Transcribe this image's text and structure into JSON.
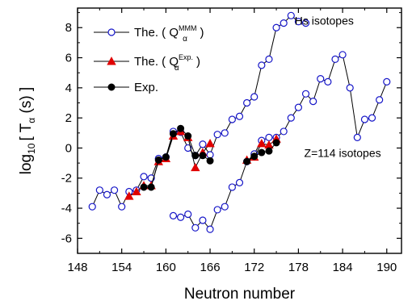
{
  "chart_data": {
    "type": "scatter",
    "xlabel": "Neutron number",
    "ylabel": {
      "prefix": "log",
      "sub": "10",
      "bracket_open": "[ T",
      "alpha": "α",
      "unit": " (s) ]"
    },
    "xlim": [
      148,
      192
    ],
    "ylim": [
      -7,
      9.3
    ],
    "xticks": [
      148,
      154,
      160,
      166,
      172,
      178,
      184,
      190
    ],
    "yticks": [
      -6,
      -4,
      -2,
      0,
      2,
      4,
      6,
      8
    ],
    "annotations": [
      {
        "text": "Hs isotopes",
        "x": 181.5,
        "y": 8.2
      },
      {
        "text": "Z=114 isotopes",
        "x": 184,
        "y": -0.6
      }
    ],
    "legend": {
      "placement": "top-left",
      "entries": [
        {
          "series": "the_mmm",
          "prefix": "The.  ( Q",
          "sub": "α",
          "sup": "MMM",
          "suffix": " )"
        },
        {
          "series": "the_exp",
          "prefix": "The.  ( Q",
          "sub": "α",
          "sup": "Exp.",
          "suffix": " )"
        },
        {
          "series": "exp",
          "prefix": "Exp.",
          "sub": "",
          "sup": "",
          "suffix": ""
        }
      ]
    },
    "series": [
      {
        "id": "the_mmm",
        "marker": "open-circle",
        "color": "#1515c8",
        "line_color": "#000000",
        "segments": [
          {
            "x": [
              150,
              151,
              152,
              153,
              154,
              155,
              156,
              157,
              158,
              159,
              160,
              161,
              162,
              163,
              164,
              165,
              166,
              167,
              168,
              169,
              170,
              171,
              172,
              173,
              174,
              175,
              176,
              177,
              178,
              179
            ],
            "y": [
              -3.9,
              -2.8,
              -3.1,
              -2.8,
              -3.9,
              -2.9,
              -2.8,
              -1.9,
              -2.0,
              -0.7,
              -0.6,
              1.1,
              1.05,
              0.0,
              -0.5,
              0.25,
              -0.45,
              0.9,
              1.0,
              1.9,
              2.1,
              3.0,
              3.4,
              5.5,
              5.9,
              8.0,
              8.3,
              8.8,
              8.4,
              8.3
            ]
          },
          {
            "x": [
              161,
              162,
              163,
              164,
              165,
              166,
              167,
              168,
              169,
              170,
              171,
              172,
              173,
              174,
              175,
              176,
              177,
              178,
              179,
              180,
              181,
              182,
              183,
              184,
              185,
              186,
              187,
              188,
              189,
              190
            ],
            "y": [
              -4.5,
              -4.6,
              -4.4,
              -5.3,
              -4.8,
              -5.4,
              -4.1,
              -3.9,
              -2.6,
              -2.3,
              -0.9,
              -0.4,
              0.5,
              0.7,
              0.7,
              1.1,
              2.0,
              2.7,
              3.6,
              3.1,
              4.6,
              4.4,
              5.9,
              6.2,
              4.0,
              0.7,
              1.9,
              2.0,
              3.2,
              4.4
            ]
          }
        ]
      },
      {
        "id": "the_exp",
        "marker": "filled-triangle",
        "color": "#e00000",
        "line_color": "#000000",
        "segments": [
          {
            "x": [
              155,
              156,
              157,
              158,
              159,
              160,
              161,
              162,
              163,
              164,
              165,
              166
            ],
            "y": [
              -3.2,
              -2.9,
              -2.5,
              -2.5,
              -0.9,
              -0.7,
              0.8,
              1.1,
              0.7,
              -1.3,
              -0.3,
              0.3
            ]
          },
          {
            "x": [
              171,
              172,
              173,
              174,
              175
            ],
            "y": [
              -0.8,
              -0.6,
              0.3,
              0.2,
              0.6
            ]
          }
        ]
      },
      {
        "id": "exp",
        "marker": "filled-circle",
        "color": "#000000",
        "line_color": "#000000",
        "segments": [
          {
            "x": [
              157,
              158,
              159,
              160,
              161,
              162,
              163,
              164,
              165,
              166
            ],
            "y": [
              -2.6,
              -2.6,
              -0.8,
              -0.6,
              0.95,
              1.3,
              0.8,
              -0.5,
              -0.5,
              -0.85
            ]
          },
          {
            "x": [
              171,
              172,
              173,
              174,
              175
            ],
            "y": [
              -0.9,
              -0.55,
              -0.3,
              -0.2,
              0.35
            ]
          }
        ]
      }
    ]
  }
}
